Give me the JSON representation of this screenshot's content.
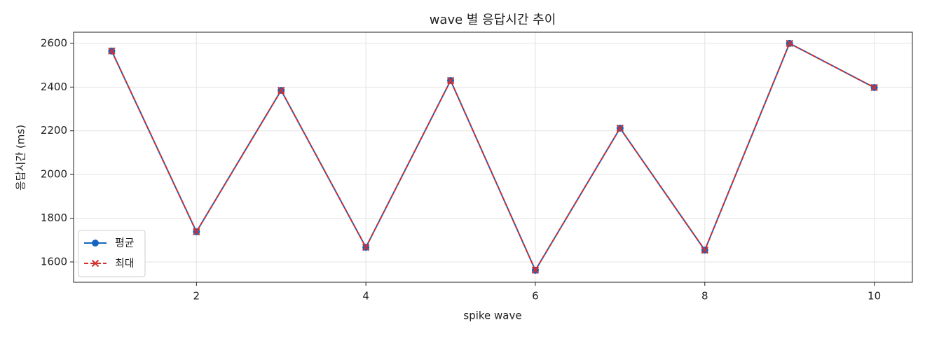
{
  "chart_data": {
    "type": "line",
    "title": "wave 별 응답시간 추이",
    "xlabel": "spike wave",
    "ylabel": "응답시간 (ms)",
    "x": [
      1,
      2,
      3,
      4,
      5,
      6,
      7,
      8,
      9,
      10
    ],
    "series": [
      {
        "name": "평균",
        "color": "#1565c0",
        "marker": "o",
        "linestyle": "solid",
        "values": [
          2565,
          1738,
          2385,
          1667,
          2430,
          1562,
          2212,
          1654,
          2600,
          2398
        ]
      },
      {
        "name": "최대",
        "color": "#d32f2f",
        "marker": "x",
        "linestyle": "dashed",
        "values": [
          2565,
          1738,
          2385,
          1667,
          2430,
          1562,
          2212,
          1654,
          2600,
          2398
        ]
      }
    ],
    "xlim": [
      0.55,
      10.45
    ],
    "ylim": [
      1507,
      2651
    ],
    "xticks": [
      2,
      4,
      6,
      8,
      10
    ],
    "yticks": [
      1600,
      1800,
      2000,
      2200,
      2400,
      2600
    ],
    "grid": true,
    "legend": "lower left"
  }
}
